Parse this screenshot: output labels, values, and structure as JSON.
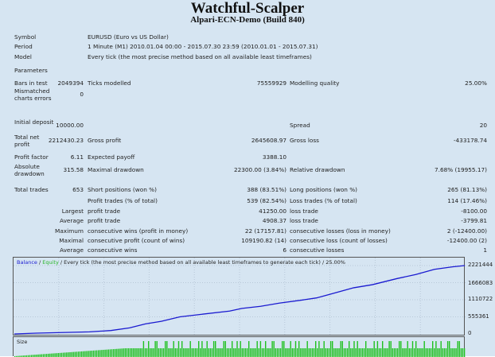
{
  "title": "Watchful-Scalper",
  "subtitle": "Alpari-ECN-Demo (Build 840)",
  "header": {
    "symbol_label": "Symbol",
    "symbol": "EURUSD (Euro vs US Dollar)",
    "period_label": "Period",
    "period": "1 Minute (M1) 2010.01.04 00:00 - 2015.07.30 23:59 (2010.01.01 - 2015.07.31)",
    "model_label": "Model",
    "model": "Every tick (the most precise method based on all available least timeframes)",
    "parameters_label": "Parameters"
  },
  "stats": {
    "bars_label": "Bars in test",
    "bars": "2049394",
    "ticks_label": "Ticks modelled",
    "ticks": "75559929",
    "quality_label": "Modelling quality",
    "quality": "25.00%",
    "mismatch_label": "Mismatched charts errors",
    "mismatch": "0",
    "deposit_label": "Initial deposit",
    "deposit": "10000.00",
    "spread_label": "Spread",
    "spread": "20",
    "netprofit_label": "Total net profit",
    "netprofit": "2212430.23",
    "grossprofit_label": "Gross profit",
    "grossprofit": "2645608.97",
    "grossloss_label": "Gross loss",
    "grossloss": "-433178.74",
    "pf_label": "Profit factor",
    "pf": "6.11",
    "payoff_label": "Expected payoff",
    "payoff": "3388.10",
    "absdd_label": "Absolute drawdown",
    "absdd": "315.58",
    "maxdd_label": "Maximal drawdown",
    "maxdd": "22300.00 (3.84%)",
    "reldd_label": "Relative drawdown",
    "reldd": "7.68% (19955.17)",
    "trades_label": "Total trades",
    "trades": "653",
    "short_label": "Short positions (won %)",
    "short": "388 (83.51%)",
    "long_label": "Long positions (won %)",
    "long": "265 (81.13%)",
    "profittrades_label": "Profit trades (% of total)",
    "profittrades": "539 (82.54%)",
    "losstrades_label": "Loss trades (% of total)",
    "losstrades": "114 (17.46%)",
    "largest_label": "Largest",
    "largest_profit_label": "profit trade",
    "largest_profit": "41250.00",
    "largest_loss_label": "loss trade",
    "largest_loss": "-8100.00",
    "average_label": "Average",
    "average_profit_label": "profit trade",
    "average_profit": "4908.37",
    "average_loss_label": "loss trade",
    "average_loss": "-3799.81",
    "maximum_label": "Maximum",
    "max_wins_label": "consecutive wins (profit in money)",
    "max_wins": "22 (17157.81)",
    "max_losses_label": "consecutive losses (loss in money)",
    "max_losses": "2 (-12400.00)",
    "maximal_label": "Maximal",
    "maximal_profit_label": "consecutive profit (count of wins)",
    "maximal_profit": "109190.82 (14)",
    "maximal_loss_label": "consecutive loss (count of losses)",
    "maximal_loss": "-12400.00 (2)",
    "avgcons_label": "Average",
    "avg_wins_label": "consecutive wins",
    "avg_wins": "6",
    "avg_losses_label": "consecutive losses",
    "avg_losses": "1"
  },
  "chart_data": {
    "type": "line",
    "legend": {
      "balance": "Balance",
      "sep1": " / ",
      "equity": "Equity",
      "rest": " / Every tick (the most precise method based on all available least timeframes to generate each tick) / 25.00%"
    },
    "colors": {
      "balance": "#1a1ad0",
      "equity": "#2ab52a",
      "size": "#1fc01f"
    },
    "y_ticks": [
      "2221444",
      "1666083",
      "1110722",
      "555361",
      "0"
    ],
    "ylim": [
      0,
      2221444
    ],
    "xlim": [
      0,
      653
    ],
    "series": [
      {
        "name": "Balance",
        "x": [
          0,
          32,
          68,
          109,
          140,
          167,
          190,
          213,
          240,
          272,
          312,
          330,
          357,
          384,
          420,
          438,
          456,
          492,
          519,
          555,
          582,
          609,
          635,
          653
        ],
        "y": [
          0,
          25000,
          45000,
          68000,
          111000,
          196000,
          325000,
          410000,
          555000,
          640000,
          743000,
          830000,
          897000,
          1000000,
          1110000,
          1170000,
          1280000,
          1500000,
          1600000,
          1800000,
          1930000,
          2100000,
          2180000,
          2221444
        ]
      }
    ],
    "size_label": "Size"
  }
}
